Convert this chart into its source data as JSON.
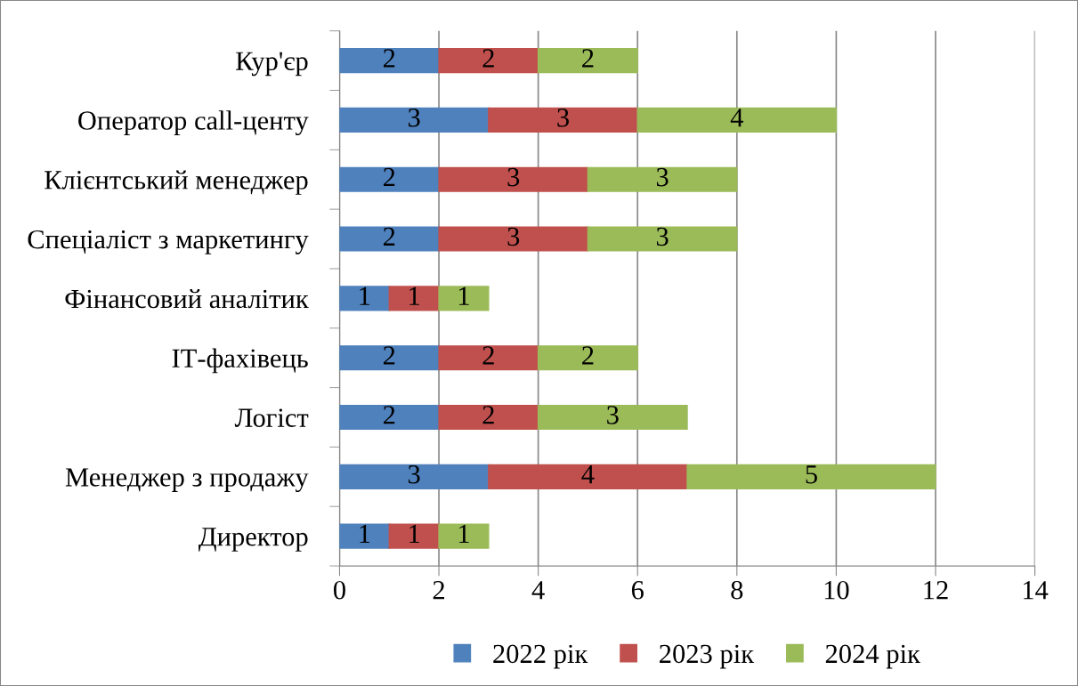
{
  "chart_data": {
    "type": "bar",
    "orientation": "horizontal",
    "stacked": true,
    "categories": [
      "Кур'єр",
      "Оператор call-центу",
      "Клієнтський менеджер",
      "Спеціаліст з маркетингу",
      "Фінансовий аналітик",
      "ІТ-фахівець",
      "Логіст",
      "Менеджер з продажу",
      "Директор"
    ],
    "series": [
      {
        "name": "2022 рік",
        "color": "#4f81bd",
        "values": [
          2,
          3,
          2,
          2,
          1,
          2,
          2,
          3,
          1
        ]
      },
      {
        "name": "2023 рік",
        "color": "#c0504d",
        "values": [
          2,
          3,
          3,
          3,
          1,
          2,
          2,
          4,
          1
        ]
      },
      {
        "name": "2024 рік",
        "color": "#9bbb59",
        "values": [
          2,
          4,
          3,
          3,
          1,
          2,
          3,
          5,
          1
        ]
      }
    ],
    "xlim": [
      0,
      14
    ],
    "xticks": [
      0,
      2,
      4,
      6,
      8,
      10,
      12,
      14
    ],
    "grid": "x",
    "legend": "bottom",
    "data_labels": true
  }
}
